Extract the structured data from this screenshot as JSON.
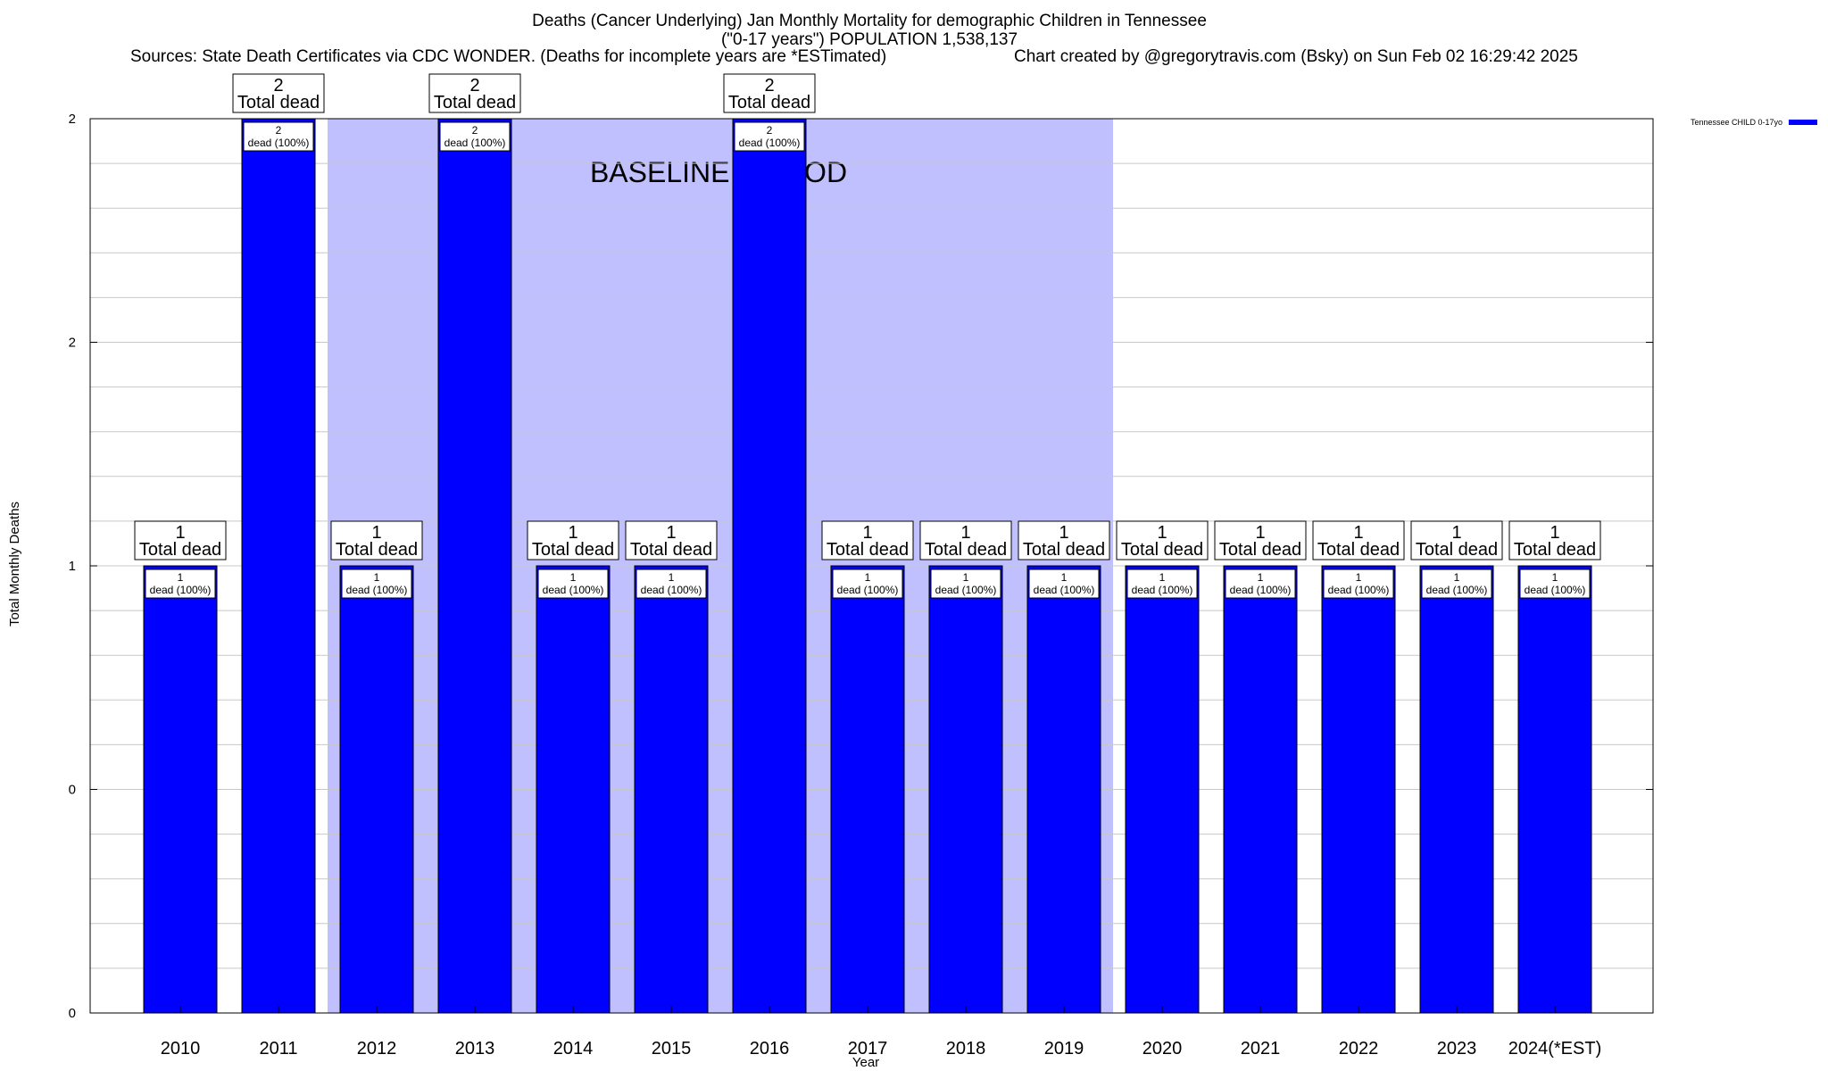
{
  "header": {
    "title_line1": "Deaths (Cancer Underlying) Jan Monthly Mortality for demographic Children in Tennessee",
    "title_line2": "(\"0-17 years\") POPULATION 1,538,137",
    "sources": "Sources: State Death Certificates via CDC WONDER. (Deaths for incomplete years are *ESTimated)",
    "credit": "Chart created by @gregorytravis.com (Bsky) on Sun Feb 02 16:29:42 2025"
  },
  "chart_data": {
    "type": "bar",
    "xlabel": "Year",
    "ylabel": "Total Monthly Deaths",
    "ylim": [
      0,
      2
    ],
    "y_tick_labels": [
      "0",
      "0",
      "1",
      "2",
      "2"
    ],
    "grid": true,
    "legend_position": "top-right",
    "categories": [
      "2010",
      "2011",
      "2012",
      "2013",
      "2014",
      "2015",
      "2016",
      "2017",
      "2018",
      "2019",
      "2020",
      "2021",
      "2022",
      "2023",
      "2024(*EST)"
    ],
    "series": [
      {
        "name": "Tennessee CHILD 0-17yo",
        "color": "#0000ff",
        "values": [
          1,
          2,
          1,
          2,
          1,
          1,
          2,
          1,
          1,
          1,
          1,
          1,
          1,
          1,
          1
        ]
      }
    ],
    "top_label_suffix": "Total dead",
    "inner_label_suffix": "dead (100%)",
    "baseline_period": {
      "label": "BASELINE PERIOD",
      "from": "2012",
      "to": "2019",
      "color": "#c0c0ff"
    }
  }
}
